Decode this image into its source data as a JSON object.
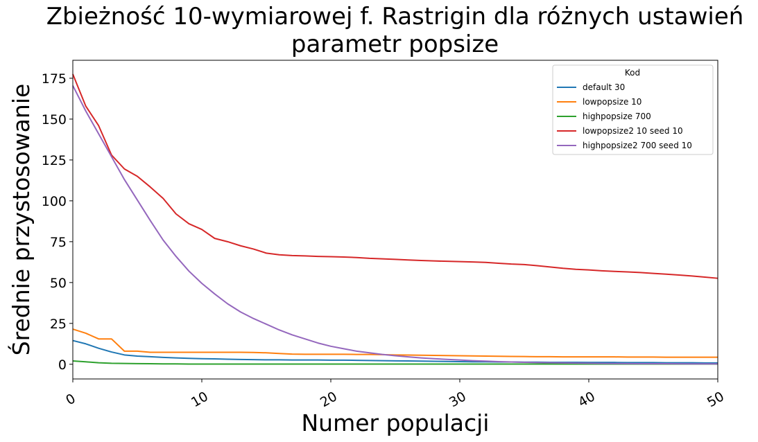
{
  "chart_data": {
    "type": "line",
    "title_line1": "Zbieżność 10-wymiarowej f. Rastrigin dla różnych ustawień",
    "title_line2": "parametr popsize",
    "xlabel": "Numer populacji",
    "ylabel": "Średnie przystosowanie",
    "xlim": [
      0,
      50
    ],
    "ylim": [
      -9,
      186
    ],
    "xticks": [
      0,
      10,
      20,
      30,
      40,
      50
    ],
    "yticks": [
      0,
      25,
      50,
      75,
      100,
      125,
      150,
      175
    ],
    "grid": false,
    "legend": {
      "title": "Kod",
      "placement": "top-right"
    },
    "x": [
      0,
      1,
      2,
      3,
      4,
      5,
      6,
      7,
      8,
      9,
      10,
      11,
      12,
      13,
      14,
      15,
      16,
      17,
      18,
      19,
      20,
      21,
      22,
      23,
      24,
      25,
      26,
      27,
      28,
      29,
      30,
      31,
      32,
      33,
      34,
      35,
      36,
      37,
      38,
      39,
      40,
      41,
      42,
      43,
      44,
      45,
      46,
      47,
      48,
      49,
      50
    ],
    "series": [
      {
        "name": "default 30",
        "color": "#1f77b4",
        "values": [
          14.5,
          12.5,
          9.8,
          7.5,
          5.7,
          5.0,
          4.6,
          4.2,
          3.9,
          3.6,
          3.4,
          3.3,
          3.1,
          2.9,
          2.8,
          2.7,
          2.7,
          2.6,
          2.6,
          2.6,
          2.5,
          2.5,
          2.4,
          2.3,
          2.2,
          2.1,
          2.0,
          1.9,
          1.8,
          1.7,
          1.6,
          1.5,
          1.5,
          1.4,
          1.4,
          1.3,
          1.3,
          1.2,
          1.2,
          1.2,
          1.1,
          1.1,
          1.1,
          1.0,
          1.0,
          1.0,
          0.9,
          0.9,
          0.9,
          0.8,
          0.8
        ]
      },
      {
        "name": "lowpopsize 10",
        "color": "#ff7f0e",
        "values": [
          21.5,
          19.0,
          15.5,
          15.5,
          8.0,
          8.0,
          7.3,
          7.3,
          7.3,
          7.3,
          7.3,
          7.3,
          7.3,
          7.3,
          7.2,
          7.0,
          6.6,
          6.2,
          6.1,
          6.1,
          6.1,
          6.1,
          6.0,
          6.0,
          5.9,
          5.7,
          5.6,
          5.5,
          5.4,
          5.3,
          5.2,
          5.1,
          5.0,
          4.9,
          4.8,
          4.7,
          4.6,
          4.6,
          4.5,
          4.5,
          4.5,
          4.5,
          4.5,
          4.4,
          4.4,
          4.4,
          4.3,
          4.3,
          4.3,
          4.3,
          4.3
        ]
      },
      {
        "name": "highpopsize 700",
        "color": "#2ca02c",
        "values": [
          2.0,
          1.5,
          0.9,
          0.6,
          0.5,
          0.4,
          0.3,
          0.2,
          0.2,
          0.1,
          0.1,
          0.1,
          0.1,
          0.1,
          0.1,
          0.1,
          0.1,
          0.1,
          0.1,
          0.1,
          0.1,
          0.1,
          0.1,
          0.1,
          0.1,
          0.1,
          0.1,
          0.1,
          0.1,
          0.1,
          0.1,
          0.1,
          0.1,
          0.1,
          0.1,
          0.1,
          0.1,
          0.1,
          0.1,
          0.1,
          0.1,
          0.1,
          0.1,
          0.1,
          0.1,
          0.1,
          0.1,
          0.1,
          0.1,
          0.1,
          0.1
        ]
      },
      {
        "name": "lowpopsize2 10 seed 10",
        "color": "#d62728",
        "values": [
          177.5,
          158.0,
          146.0,
          128.0,
          119.5,
          115.0,
          108.5,
          101.5,
          92.0,
          86.0,
          82.5,
          77.0,
          75.0,
          72.5,
          70.5,
          68.0,
          67.0,
          66.5,
          66.3,
          66.0,
          65.8,
          65.6,
          65.3,
          64.8,
          64.5,
          64.2,
          63.8,
          63.5,
          63.2,
          63.0,
          62.8,
          62.6,
          62.3,
          61.8,
          61.3,
          61.0,
          60.3,
          59.5,
          58.7,
          58.1,
          57.7,
          57.2,
          56.8,
          56.5,
          56.1,
          55.6,
          55.1,
          54.6,
          54.0,
          53.3,
          52.6
        ]
      },
      {
        "name": "highpopsize2 700 seed 10",
        "color": "#9467bd",
        "values": [
          170.5,
          155.0,
          141.0,
          127.0,
          113.0,
          100.5,
          88.0,
          76.0,
          66.0,
          57.0,
          49.5,
          43.0,
          37.0,
          32.0,
          28.0,
          24.5,
          21.0,
          18.0,
          15.5,
          13.0,
          11.0,
          9.5,
          8.0,
          7.0,
          6.0,
          5.2,
          4.5,
          3.9,
          3.4,
          3.0,
          2.6,
          2.2,
          1.9,
          1.6,
          1.4,
          1.2,
          1.0,
          0.9,
          0.8,
          0.7,
          0.6,
          0.5,
          0.45,
          0.4,
          0.35,
          0.3,
          0.3,
          0.25,
          0.2,
          0.2,
          0.2
        ]
      }
    ]
  }
}
